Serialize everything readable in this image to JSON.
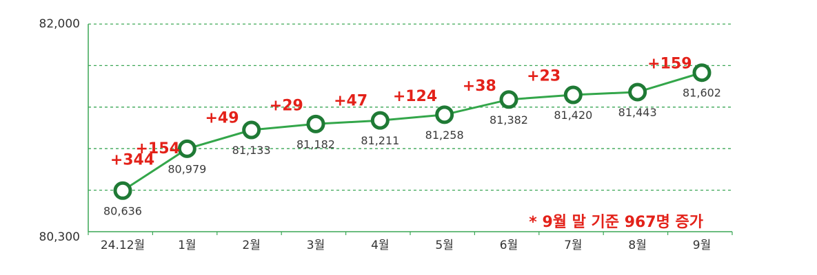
{
  "chart_data": {
    "type": "line",
    "categories": [
      "24.12월",
      "1월",
      "2월",
      "3월",
      "4월",
      "5월",
      "6월",
      "7월",
      "8월",
      "9월"
    ],
    "values": [
      80636,
      80979,
      81133,
      81182,
      81211,
      81258,
      81382,
      81420,
      81443,
      81602
    ],
    "value_labels": [
      "80,636",
      "80,979",
      "81,133",
      "81,182",
      "81,211",
      "81,258",
      "81,382",
      "81,420",
      "81,443",
      "81,602"
    ],
    "change_labels": [
      "+344",
      "+154",
      "+49",
      "+29",
      "+47",
      "+124",
      "+38",
      "+23",
      "+159"
    ],
    "ylim": [
      80300,
      82000
    ],
    "y_tick_labels": [
      "82,000",
      "80,300"
    ],
    "grid": true,
    "annotation": "* 9월 말 기준 967명 증가",
    "colors": {
      "line": "#33a64a",
      "marker": "#1f7a35",
      "grid": "#3aa655",
      "axis": "#3aa655",
      "change": "#e32119",
      "annotation": "#e32119"
    }
  }
}
